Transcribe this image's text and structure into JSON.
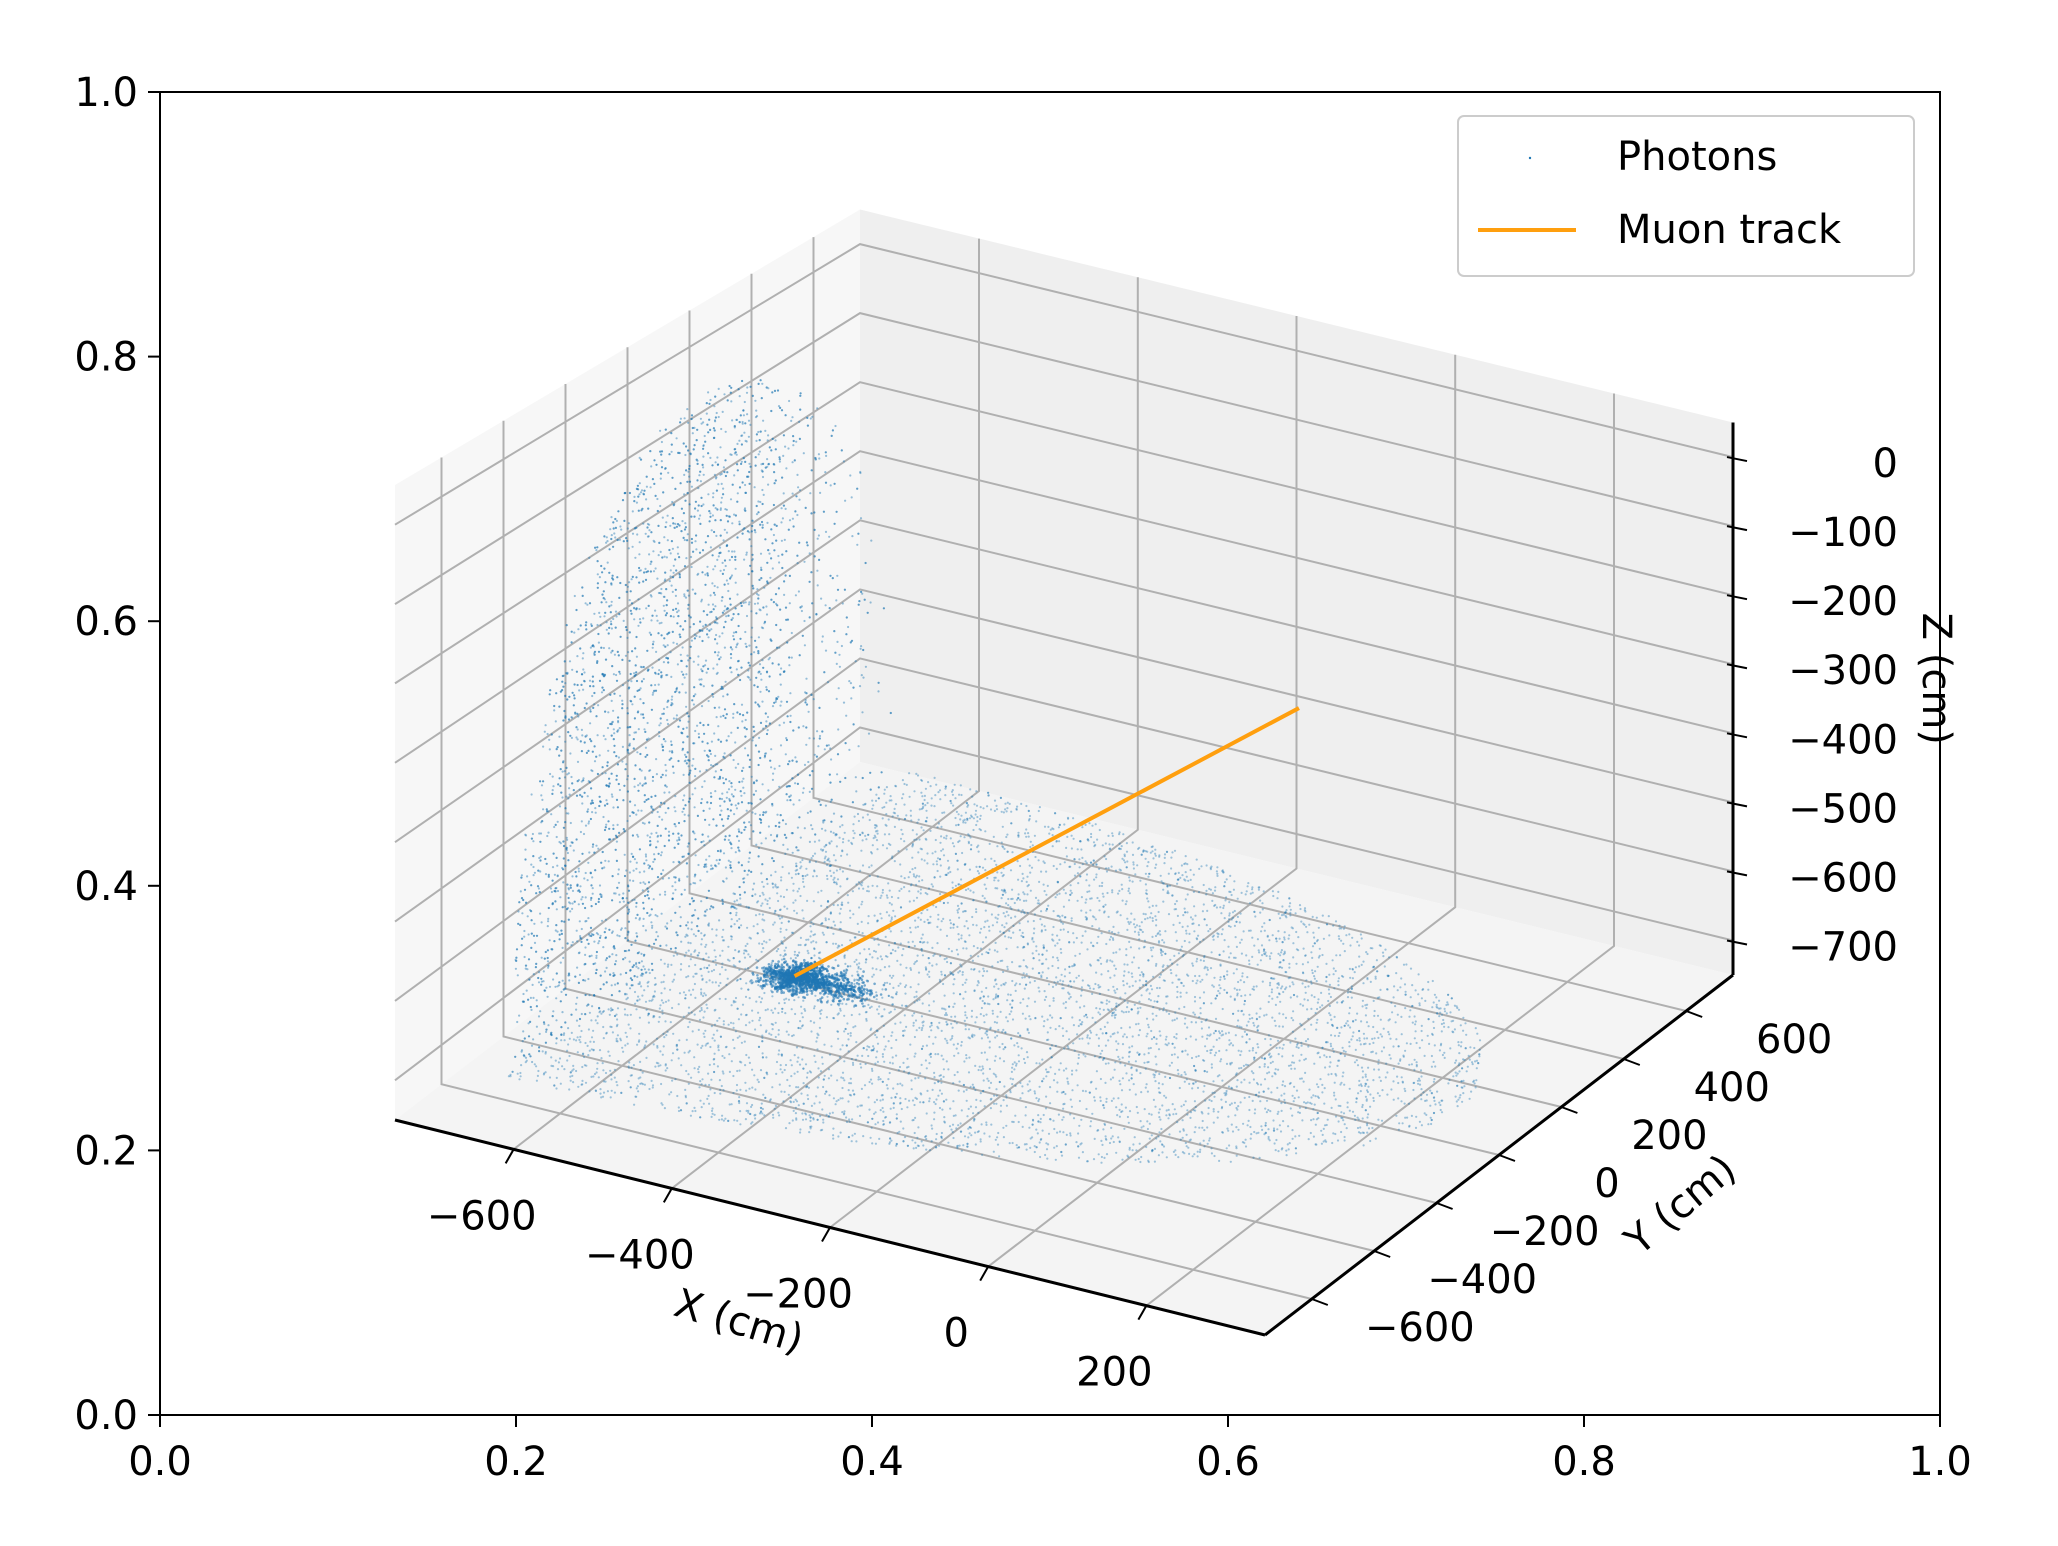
{
  "chart_data": {
    "type": "scatter",
    "projection": "3d",
    "outer_axes": {
      "xlim": [
        0.0,
        1.0
      ],
      "ylim": [
        0.0,
        1.0
      ],
      "xticks": [
        "0.0",
        "0.2",
        "0.4",
        "0.6",
        "0.8",
        "1.0"
      ],
      "yticks": [
        "0.0",
        "0.2",
        "0.4",
        "0.6",
        "0.8",
        "1.0"
      ]
    },
    "axes3d": {
      "xlabel": "X (cm)",
      "ylabel": "Y (cm)",
      "zlabel": "Z (cm)",
      "xlim": [
        -750,
        350
      ],
      "ylim": [
        -750,
        750
      ],
      "zlim": [
        -750,
        50
      ],
      "xticks": [
        -600,
        -400,
        -200,
        0,
        200
      ],
      "xtick_labels": [
        "−600",
        "−400",
        "−200",
        "0",
        "200"
      ],
      "yticks": [
        -600,
        -400,
        -200,
        0,
        200,
        400,
        600
      ],
      "ytick_labels": [
        "−600",
        "−400",
        "−200",
        "0",
        "200",
        "400",
        "600"
      ],
      "zticks": [
        0,
        -100,
        -200,
        -300,
        -400,
        -500,
        -600,
        -700
      ],
      "ztick_labels": [
        "0",
        "−100",
        "−200",
        "−300",
        "−400",
        "−500",
        "−600",
        "−700"
      ],
      "grid": true,
      "pane_color": "#f2f2f2"
    },
    "series": [
      {
        "name": "Photons",
        "kind": "scatter",
        "color": "#1f77b4",
        "description_shape": "cylinder wall (x = -650) plus floor disk (z = -700)"
      },
      {
        "name": "Muon track",
        "kind": "line",
        "color": "#ff9f0e",
        "x": [
          -40,
          -500
        ],
        "y": [
          350,
          -100
        ],
        "z": [
          -350,
          -700
        ]
      }
    ],
    "legend": {
      "position": "top-right",
      "entries": [
        "Photons",
        "Muon track"
      ]
    }
  }
}
